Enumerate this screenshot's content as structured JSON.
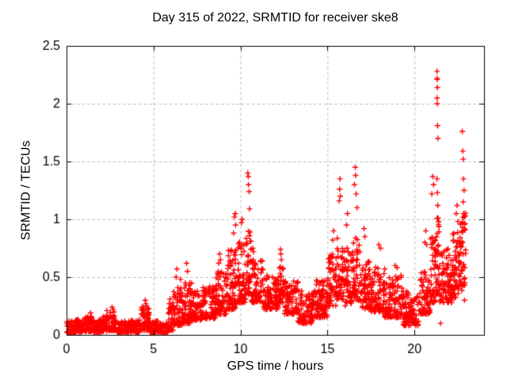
{
  "chart_data": {
    "type": "scatter",
    "title": "Day 315 of 2022, SRMTID for receiver ske8",
    "xlabel": "GPS time / hours",
    "ylabel": "SRMTID / TECUs",
    "xlim": [
      0,
      24
    ],
    "ylim": [
      0,
      2.5
    ],
    "xtick_values": [
      0,
      5,
      10,
      15,
      20
    ],
    "xtick_labels": [
      "0",
      "5",
      "10",
      "15",
      "20"
    ],
    "ytick_values": [
      0,
      0.5,
      1,
      1.5,
      2,
      2.5
    ],
    "ytick_labels": [
      "0",
      "0.5",
      "1",
      "1.5",
      "2",
      "2.5"
    ],
    "grid": true,
    "legend": "none",
    "marker": "plus",
    "marker_size": 7,
    "marker_color": "#ff0000",
    "grid_color": "#b9b9b9",
    "border_color": "#000000",
    "text_color": "#000000",
    "background_color": "#ffffff",
    "seed": 1315,
    "bands": [
      [
        0.0,
        0.5,
        0.02,
        0.12,
        55
      ],
      [
        0.5,
        1.0,
        0.02,
        0.13,
        55
      ],
      [
        1.0,
        1.5,
        0.03,
        0.16,
        55
      ],
      [
        1.5,
        2.0,
        0.02,
        0.13,
        55
      ],
      [
        2.0,
        2.5,
        0.03,
        0.17,
        55
      ],
      [
        2.5,
        2.9,
        0.04,
        0.22,
        45
      ],
      [
        2.9,
        3.4,
        0.02,
        0.12,
        50
      ],
      [
        3.4,
        4.2,
        0.02,
        0.13,
        80
      ],
      [
        4.2,
        4.75,
        0.04,
        0.24,
        60
      ],
      [
        4.75,
        5.3,
        0.02,
        0.12,
        55
      ],
      [
        5.3,
        5.85,
        0.02,
        0.1,
        55
      ],
      [
        5.85,
        6.15,
        0.04,
        0.28,
        35
      ],
      [
        6.15,
        6.7,
        0.08,
        0.42,
        60
      ],
      [
        6.7,
        7.2,
        0.1,
        0.45,
        55
      ],
      [
        7.2,
        7.8,
        0.13,
        0.38,
        65
      ],
      [
        7.8,
        8.6,
        0.14,
        0.42,
        85
      ],
      [
        8.6,
        9.2,
        0.18,
        0.55,
        70
      ],
      [
        9.2,
        9.8,
        0.22,
        0.75,
        75
      ],
      [
        9.8,
        10.3,
        0.28,
        0.85,
        60
      ],
      [
        10.3,
        10.6,
        0.35,
        1.0,
        40
      ],
      [
        10.6,
        11.3,
        0.28,
        0.65,
        75
      ],
      [
        11.3,
        12.2,
        0.22,
        0.52,
        90
      ],
      [
        12.2,
        12.5,
        0.28,
        0.6,
        35
      ],
      [
        12.5,
        13.3,
        0.18,
        0.48,
        85
      ],
      [
        13.3,
        14.2,
        0.1,
        0.38,
        90
      ],
      [
        14.2,
        15.0,
        0.15,
        0.48,
        85
      ],
      [
        15.0,
        15.5,
        0.25,
        0.7,
        55
      ],
      [
        15.5,
        16.0,
        0.3,
        0.85,
        55
      ],
      [
        16.0,
        16.45,
        0.25,
        0.75,
        50
      ],
      [
        16.45,
        16.9,
        0.3,
        0.85,
        50
      ],
      [
        16.9,
        17.5,
        0.22,
        0.65,
        65
      ],
      [
        17.5,
        18.3,
        0.2,
        0.6,
        85
      ],
      [
        18.3,
        19.3,
        0.15,
        0.52,
        100
      ],
      [
        19.3,
        20.3,
        0.08,
        0.38,
        100
      ],
      [
        20.3,
        20.9,
        0.18,
        0.55,
        65
      ],
      [
        20.9,
        21.2,
        0.28,
        0.85,
        40
      ],
      [
        21.2,
        21.45,
        0.35,
        1.05,
        35
      ],
      [
        21.45,
        22.2,
        0.28,
        0.75,
        85
      ],
      [
        22.2,
        22.6,
        0.32,
        0.9,
        50
      ],
      [
        22.6,
        22.95,
        0.38,
        1.1,
        45
      ]
    ],
    "outliers": [
      [
        1.38,
        0.19
      ],
      [
        2.32,
        0.21
      ],
      [
        2.62,
        0.24
      ],
      [
        2.68,
        0.22
      ],
      [
        4.52,
        0.3
      ],
      [
        4.56,
        0.27
      ],
      [
        4.6,
        0.25
      ],
      [
        5.95,
        0.31
      ],
      [
        6.3,
        0.5
      ],
      [
        6.35,
        0.57
      ],
      [
        6.55,
        0.48
      ],
      [
        6.9,
        0.62
      ],
      [
        6.95,
        0.55
      ],
      [
        8.75,
        0.62
      ],
      [
        8.8,
        0.7
      ],
      [
        8.85,
        0.65
      ],
      [
        9.6,
        0.88
      ],
      [
        9.65,
        1.02
      ],
      [
        9.7,
        1.05
      ],
      [
        9.72,
        0.95
      ],
      [
        10.05,
        0.97
      ],
      [
        10.1,
        1.0
      ],
      [
        10.42,
        1.4
      ],
      [
        10.45,
        1.37
      ],
      [
        10.46,
        1.3
      ],
      [
        10.5,
        1.24
      ],
      [
        10.52,
        1.09
      ],
      [
        10.7,
        0.75
      ],
      [
        10.75,
        0.72
      ],
      [
        12.3,
        0.74
      ],
      [
        12.32,
        0.7
      ],
      [
        12.35,
        0.65
      ],
      [
        15.3,
        0.82
      ],
      [
        15.35,
        0.9
      ],
      [
        15.68,
        1.16
      ],
      [
        15.7,
        1.26
      ],
      [
        15.72,
        1.35
      ],
      [
        15.74,
        1.2
      ],
      [
        16.1,
        0.95
      ],
      [
        16.15,
        1.05
      ],
      [
        16.55,
        1.3
      ],
      [
        16.6,
        1.45
      ],
      [
        16.62,
        1.38
      ],
      [
        16.65,
        1.22
      ],
      [
        16.7,
        1.1
      ],
      [
        17.1,
        0.92
      ],
      [
        17.15,
        0.85
      ],
      [
        17.95,
        0.78
      ],
      [
        18.05,
        0.75
      ],
      [
        18.9,
        0.6
      ],
      [
        19.0,
        0.58
      ],
      [
        20.6,
        0.8
      ],
      [
        20.65,
        0.9
      ],
      [
        20.7,
        0.78
      ],
      [
        21.0,
        1.22
      ],
      [
        21.05,
        1.37
      ],
      [
        21.1,
        1.3
      ],
      [
        21.3,
        2.28
      ],
      [
        21.3,
        2.22
      ],
      [
        21.31,
        2.21
      ],
      [
        21.32,
        2.14
      ],
      [
        21.3,
        2.05
      ],
      [
        21.31,
        2.0
      ],
      [
        21.33,
        1.81
      ],
      [
        21.35,
        1.7
      ],
      [
        21.3,
        1.35
      ],
      [
        21.32,
        1.23
      ],
      [
        21.34,
        1.12
      ],
      [
        21.36,
        1.01
      ],
      [
        21.5,
        0.1
      ],
      [
        22.4,
        1.05
      ],
      [
        22.45,
        1.12
      ],
      [
        22.5,
        0.98
      ],
      [
        22.75,
        1.76
      ],
      [
        22.78,
        1.59
      ],
      [
        22.8,
        1.52
      ],
      [
        22.82,
        1.35
      ],
      [
        22.85,
        1.25
      ],
      [
        22.8,
        1.15
      ],
      [
        22.83,
        1.05
      ],
      [
        22.88,
        0.3
      ],
      [
        22.9,
        0.45
      ]
    ]
  }
}
